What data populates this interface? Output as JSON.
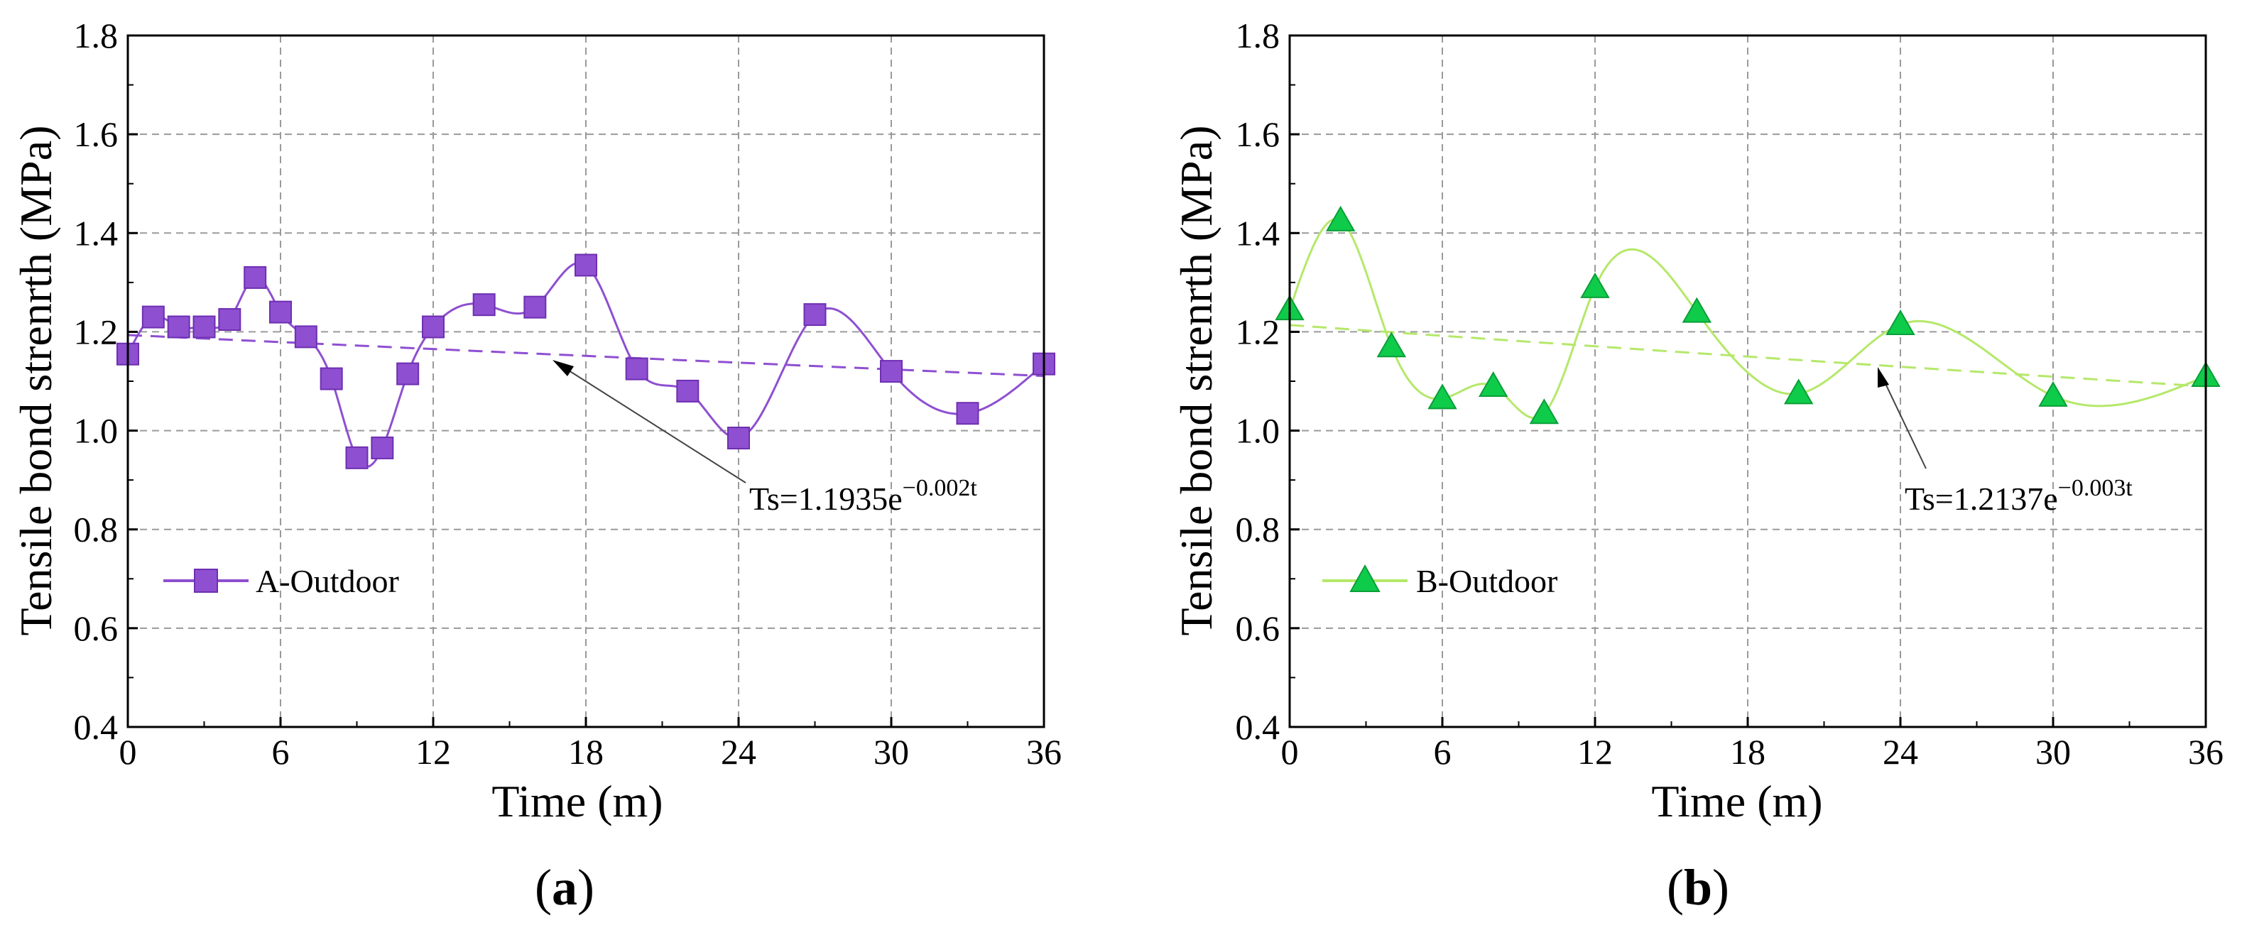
{
  "chart_data": [
    {
      "type": "line",
      "panel_label": "a",
      "xlabel": "Time (m)",
      "ylabel": "Tensile bond strenrth (MPa)",
      "xlim": [
        0,
        36
      ],
      "ylim": [
        0.4,
        1.8
      ],
      "xticks": [
        0,
        6,
        12,
        18,
        24,
        30,
        36
      ],
      "xtick_labels": [
        "0",
        "6",
        "12",
        "18",
        "24",
        "30",
        "36"
      ],
      "yticks": [
        0.4,
        0.6,
        0.8,
        1.0,
        1.2,
        1.4,
        1.6,
        1.8
      ],
      "ytick_labels": [
        "0.4",
        "0.6",
        "0.8",
        "1.0",
        "1.2",
        "1.4",
        "1.6",
        "1.8"
      ],
      "grid": true,
      "legend_position": "lower-left",
      "series": [
        {
          "name": "A-Outdoor",
          "marker": "square",
          "color": "#8E4FD1",
          "x": [
            0,
            1,
            2,
            3,
            4,
            5,
            6,
            7,
            8,
            9,
            10,
            11,
            12,
            14,
            16,
            18,
            20,
            22,
            24,
            27,
            30,
            33,
            36
          ],
          "y": [
            1.155,
            1.23,
            1.21,
            1.21,
            1.225,
            1.31,
            1.24,
            1.19,
            1.105,
            0.945,
            0.965,
            1.115,
            1.21,
            1.255,
            1.25,
            1.335,
            1.125,
            1.08,
            0.985,
            1.235,
            1.12,
            1.035,
            1.135
          ]
        }
      ],
      "fit": {
        "a": 1.1935,
        "b": -0.002,
        "color": "#8E4FD1",
        "label_main": "Ts=1.1935e",
        "label_exp": "−0.002t"
      }
    },
    {
      "type": "line",
      "panel_label": "b",
      "xlabel": "Time (m)",
      "ylabel": "Tensile bond strenrth (MPa)",
      "xlim": [
        0,
        36
      ],
      "ylim": [
        0.4,
        1.8
      ],
      "xticks": [
        0,
        6,
        12,
        18,
        24,
        30,
        36
      ],
      "xtick_labels": [
        "0",
        "6",
        "12",
        "18",
        "24",
        "30",
        "36"
      ],
      "yticks": [
        0.4,
        0.6,
        0.8,
        1.0,
        1.2,
        1.4,
        1.6,
        1.8
      ],
      "ytick_labels": [
        "0.4",
        "0.6",
        "0.8",
        "1.0",
        "1.2",
        "1.4",
        "1.6",
        "1.8"
      ],
      "grid": true,
      "legend_position": "lower-left",
      "series": [
        {
          "name": "B-Outdoor",
          "marker": "triangle",
          "color": "#0FCB4A",
          "line_color": "#B5E86A",
          "x": [
            0,
            2,
            4,
            6,
            8,
            10,
            12,
            16,
            20,
            24,
            30,
            36
          ],
          "y": [
            1.245,
            1.425,
            1.17,
            1.065,
            1.09,
            1.035,
            1.29,
            1.24,
            1.075,
            1.215,
            1.07,
            1.11
          ]
        }
      ],
      "fit": {
        "a": 1.2137,
        "b": -0.003,
        "color": "#B5E86A",
        "label_main": "Ts=1.2137e",
        "label_exp": "−0.003t"
      }
    }
  ]
}
